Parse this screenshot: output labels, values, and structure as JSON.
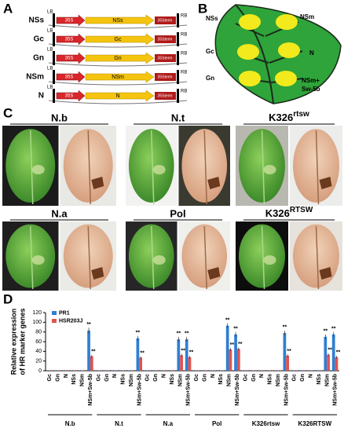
{
  "panels": {
    "a": {
      "label": "A",
      "constructs": [
        {
          "name": "NSs",
          "lb": "LB",
          "promoter": "35S",
          "gene": "NSs",
          "terminator": "35Sterm",
          "rb": "RB"
        },
        {
          "name": "Gc",
          "lb": "LB",
          "promoter": "35S",
          "gene": "Gc",
          "terminator": "35Sterm",
          "rb": "RB"
        },
        {
          "name": "Gn",
          "lb": "LB",
          "promoter": "35S",
          "gene": "Gn",
          "terminator": "35Sterm",
          "rb": "RB"
        },
        {
          "name": "NSm",
          "lb": "LB",
          "promoter": "35S",
          "gene": "NSm",
          "terminator": "35Sterm",
          "rb": "RB"
        },
        {
          "name": "N",
          "lb": "LB",
          "promoter": "35S",
          "gene": "N",
          "terminator": "35Sterm",
          "rb": "RB"
        }
      ]
    },
    "b": {
      "label": "B",
      "spots": {
        "nss": "NSs",
        "nsm": "NSm",
        "gc": "Gc",
        "n": "N",
        "gn": "Gn",
        "nsm_sw5b": [
          "NSm+",
          "Sw-5b"
        ]
      }
    },
    "c": {
      "label": "C",
      "plants": [
        {
          "name": "N.b"
        },
        {
          "name": "N.t"
        },
        {
          "base": "K326",
          "sup": "rtsw"
        },
        {
          "name": "N.a"
        },
        {
          "name": "Pol"
        },
        {
          "base": "K326",
          "sup": "RTSW"
        }
      ]
    },
    "d": {
      "label": "D"
    }
  },
  "chart_data": {
    "type": "bar",
    "ylabel": [
      "Relative expression",
      "of HR marker genes"
    ],
    "categories": [
      "Gc",
      "Gn",
      "N",
      "NSs",
      "NSm",
      "NSm+Sw-5b",
      "Gc",
      "Gn",
      "N",
      "NSs",
      "NSm",
      "NSm+Sw-5b",
      "Gc",
      "Gn",
      "N",
      "NSs",
      "NSm",
      "NSm+Sw-5b",
      "Gc",
      "Gn",
      "N",
      "NSs",
      "NSm",
      "NSm+Sw-5b",
      "Gc",
      "Gn",
      "N",
      "NSs",
      "NSm",
      "NSm+Sw-5b",
      "Gc",
      "Gn",
      "N",
      "NSs",
      "NSm",
      "NSm+Sw-5b"
    ],
    "groups": [
      "N.b",
      "N.t",
      "N.a",
      "Pol",
      "K326rtsw",
      "K326RTSW"
    ],
    "series": [
      {
        "name": "PR1",
        "color": "#2f7fd3",
        "values": [
          1,
          1,
          1,
          1,
          1,
          83,
          1,
          1,
          1,
          1,
          1,
          67,
          1,
          1,
          1,
          1,
          65,
          65,
          1,
          1,
          1,
          1,
          93,
          75,
          1,
          1,
          1,
          1,
          1,
          78,
          1,
          1,
          1,
          1,
          70,
          75
        ],
        "errors": [
          0.5,
          0.5,
          0.5,
          0.5,
          0.5,
          6,
          0.5,
          0.5,
          0.5,
          0.5,
          0.5,
          5,
          0.5,
          0.5,
          0.5,
          0.5,
          5,
          5,
          0.5,
          0.5,
          0.5,
          0.5,
          5,
          5,
          0.5,
          0.5,
          0.5,
          0.5,
          0.5,
          5,
          0.5,
          0.5,
          0.5,
          0.5,
          5,
          5
        ],
        "annotations": [
          null,
          null,
          null,
          null,
          null,
          "**",
          null,
          null,
          null,
          null,
          null,
          "**",
          null,
          null,
          null,
          null,
          "**",
          "**",
          null,
          null,
          null,
          null,
          "**",
          "**",
          null,
          null,
          null,
          null,
          null,
          "**",
          null,
          null,
          null,
          null,
          "**",
          "**"
        ]
      },
      {
        "name": "HSR203J",
        "color": "#e0534f",
        "values": [
          1,
          1,
          1,
          1,
          1,
          30,
          1,
          1,
          1,
          1,
          1,
          27,
          1,
          1,
          1,
          1,
          32,
          28,
          1,
          1,
          1,
          1,
          44,
          45,
          1,
          1,
          1,
          1,
          1,
          31,
          1,
          1,
          1,
          1,
          33,
          28
        ],
        "errors": [
          0.5,
          0.5,
          0.5,
          0.5,
          0.5,
          3,
          0.5,
          0.5,
          0.5,
          0.5,
          0.5,
          3,
          0.5,
          0.5,
          0.5,
          0.5,
          3,
          3,
          0.5,
          0.5,
          0.5,
          0.5,
          3,
          3,
          0.5,
          0.5,
          0.5,
          0.5,
          0.5,
          3,
          0.5,
          0.5,
          0.5,
          0.5,
          3,
          3
        ],
        "annotations": [
          null,
          null,
          null,
          null,
          null,
          "**",
          null,
          null,
          null,
          null,
          null,
          "**",
          null,
          null,
          null,
          null,
          "**",
          "**",
          null,
          null,
          null,
          null,
          "**",
          "**",
          null,
          null,
          null,
          null,
          null,
          "**",
          null,
          null,
          null,
          null,
          "**",
          "**"
        ]
      }
    ],
    "ylim": [
      0,
      120
    ],
    "yticks": [
      0,
      20,
      40,
      60,
      80,
      100,
      120
    ]
  }
}
